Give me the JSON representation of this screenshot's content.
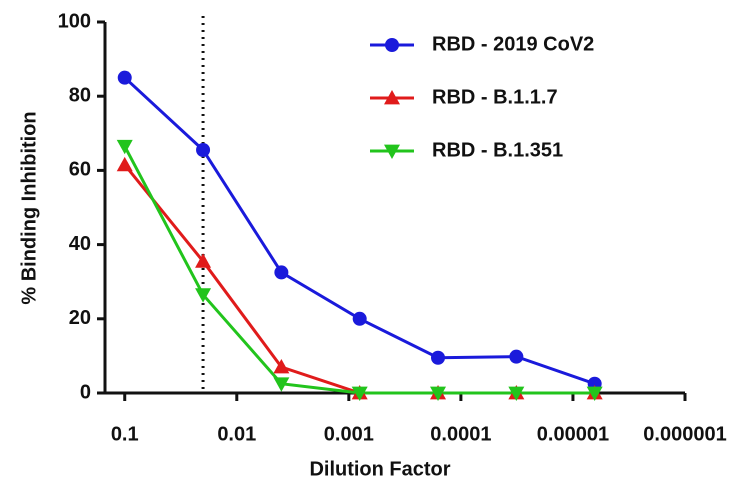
{
  "chart_data": {
    "type": "line",
    "xlabel": "Dilution Factor",
    "ylabel": "% Binding Inhibition",
    "x": [
      0.1,
      0.02,
      0.004,
      0.0008,
      0.00016,
      3.2e-05,
      6.4e-06
    ],
    "xscale": "log",
    "xlim": [
      0.15,
      1e-06
    ],
    "xticks": [
      0.1,
      0.01,
      0.001,
      0.0001,
      1e-05,
      1e-06
    ],
    "ylim": [
      0,
      100
    ],
    "yticks": [
      0,
      20,
      40,
      60,
      80,
      100
    ],
    "vline": 0.02,
    "legend": "upper right",
    "series": [
      {
        "name": "RBD - 2019 CoV2",
        "color": "#1a1adb",
        "marker": "circle",
        "values": [
          85,
          65.5,
          32.5,
          20,
          9.5,
          9.8,
          2.5
        ]
      },
      {
        "name": "RBD - B.1.1.7",
        "color": "#e01b1b",
        "marker": "triangle-up",
        "values": [
          61.5,
          35.5,
          7,
          0,
          0,
          0,
          0
        ]
      },
      {
        "name": "RBD - B.1.351",
        "color": "#22c41c",
        "marker": "triangle-down",
        "values": [
          66.5,
          26.5,
          2.5,
          0,
          0,
          0,
          0
        ]
      }
    ]
  }
}
